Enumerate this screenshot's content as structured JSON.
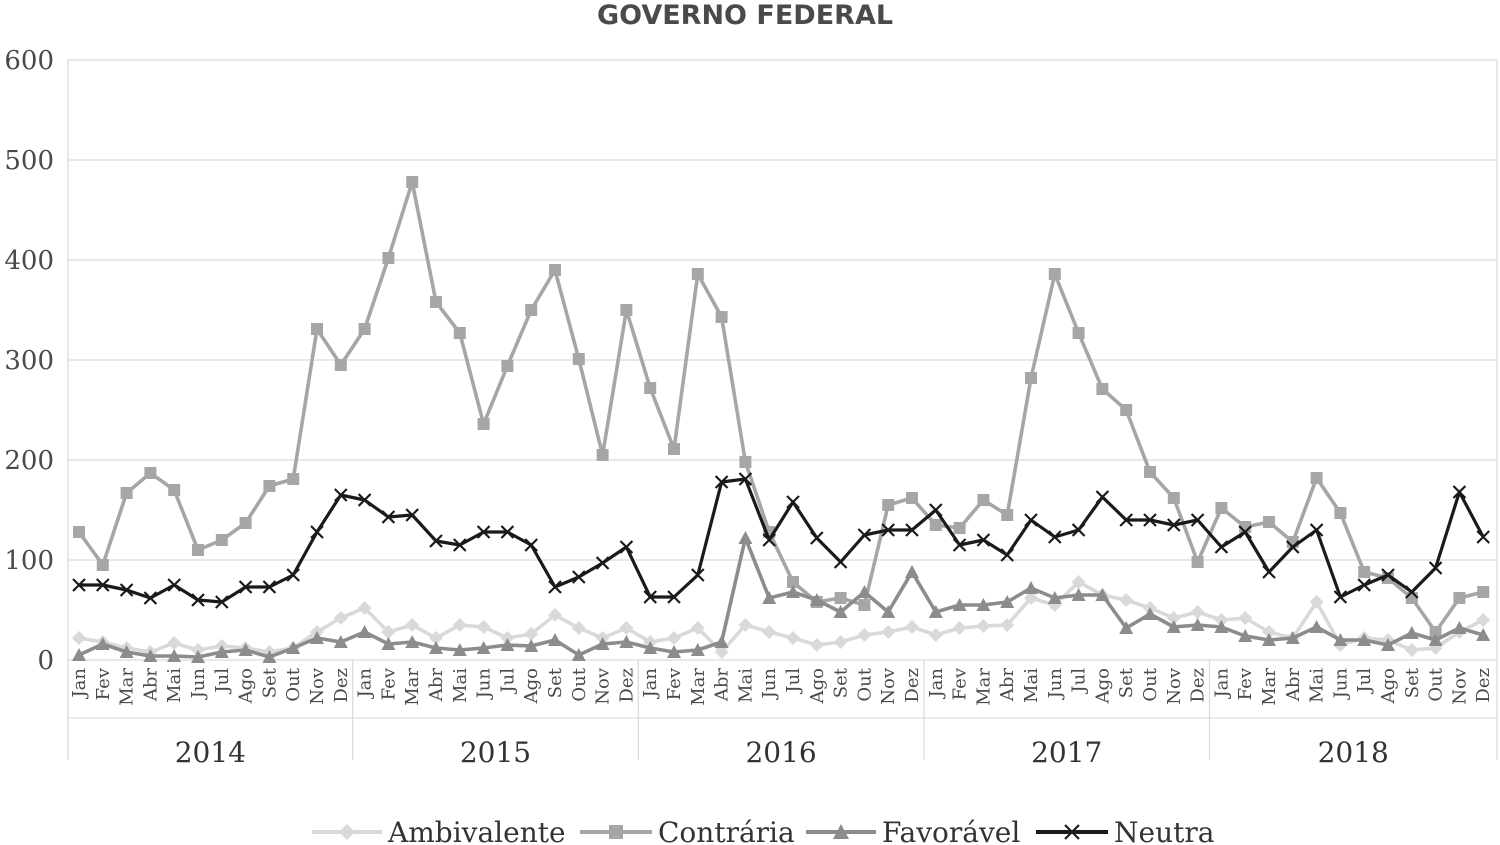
{
  "chart_data": {
    "type": "line",
    "title": "GOVERNO FEDERAL",
    "xlabel": "",
    "ylabel": "",
    "ylim": [
      0,
      600
    ],
    "yticks": [
      "0",
      "100",
      "200",
      "300",
      "400",
      "500",
      "600"
    ],
    "grid": "horizontal",
    "legend_position": "bottom",
    "years": [
      "2014",
      "2015",
      "2016",
      "2017",
      "2018"
    ],
    "months": [
      "Jan",
      "Fev",
      "Mar",
      "Abr",
      "Mai",
      "Jun",
      "Jul",
      "Ago",
      "Set",
      "Out",
      "Nov",
      "Dez"
    ],
    "series": [
      {
        "name": "Ambivalente",
        "color": "#d9d9d9",
        "marker": "diamond",
        "values": [
          22,
          18,
          12,
          8,
          17,
          10,
          14,
          12,
          8,
          12,
          28,
          42,
          52,
          28,
          35,
          22,
          35,
          33,
          22,
          26,
          45,
          32,
          22,
          32,
          18,
          22,
          32,
          8,
          35,
          28,
          22,
          15,
          18,
          25,
          28,
          33,
          25,
          32,
          34,
          35,
          62,
          55,
          78,
          65,
          60,
          52,
          42,
          48,
          40,
          42,
          28,
          22,
          58,
          15,
          22,
          20,
          10,
          12,
          28,
          40
        ]
      },
      {
        "name": "Contrária",
        "color": "#a6a6a6",
        "marker": "square",
        "values": [
          128,
          95,
          167,
          187,
          170,
          110,
          120,
          137,
          174,
          181,
          331,
          295,
          331,
          402,
          478,
          358,
          327,
          236,
          294,
          350,
          390,
          301,
          205,
          350,
          272,
          211,
          386,
          343,
          198,
          128,
          78,
          58,
          62,
          55,
          155,
          162,
          135,
          132,
          160,
          145,
          282,
          386,
          327,
          271,
          250,
          188,
          162,
          98,
          152,
          133,
          138,
          118,
          182,
          147,
          88,
          82,
          62,
          28,
          62,
          68
        ]
      },
      {
        "name": "Favorável",
        "color": "#8c8c8c",
        "marker": "triangle",
        "values": [
          5,
          16,
          8,
          4,
          4,
          3,
          8,
          10,
          3,
          12,
          22,
          18,
          28,
          16,
          18,
          12,
          10,
          12,
          15,
          14,
          20,
          5,
          16,
          18,
          12,
          8,
          10,
          18,
          122,
          62,
          68,
          60,
          48,
          68,
          48,
          88,
          48,
          55,
          55,
          58,
          72,
          62,
          65,
          65,
          32,
          46,
          33,
          35,
          33,
          24,
          20,
          22,
          33,
          20,
          20,
          15,
          27,
          20,
          32,
          25
        ]
      },
      {
        "name": "Neutra",
        "color": "#1a1a1a",
        "marker": "x",
        "values": [
          75,
          75,
          70,
          62,
          75,
          60,
          58,
          73,
          73,
          85,
          128,
          165,
          160,
          143,
          145,
          119,
          115,
          128,
          128,
          115,
          73,
          83,
          97,
          113,
          63,
          63,
          85,
          178,
          181,
          120,
          158,
          122,
          98,
          125,
          130,
          130,
          150,
          115,
          120,
          105,
          140,
          123,
          130,
          163,
          140,
          140,
          135,
          140,
          113,
          128,
          88,
          113,
          130,
          63,
          75,
          85,
          68,
          92,
          168,
          123
        ]
      }
    ]
  }
}
